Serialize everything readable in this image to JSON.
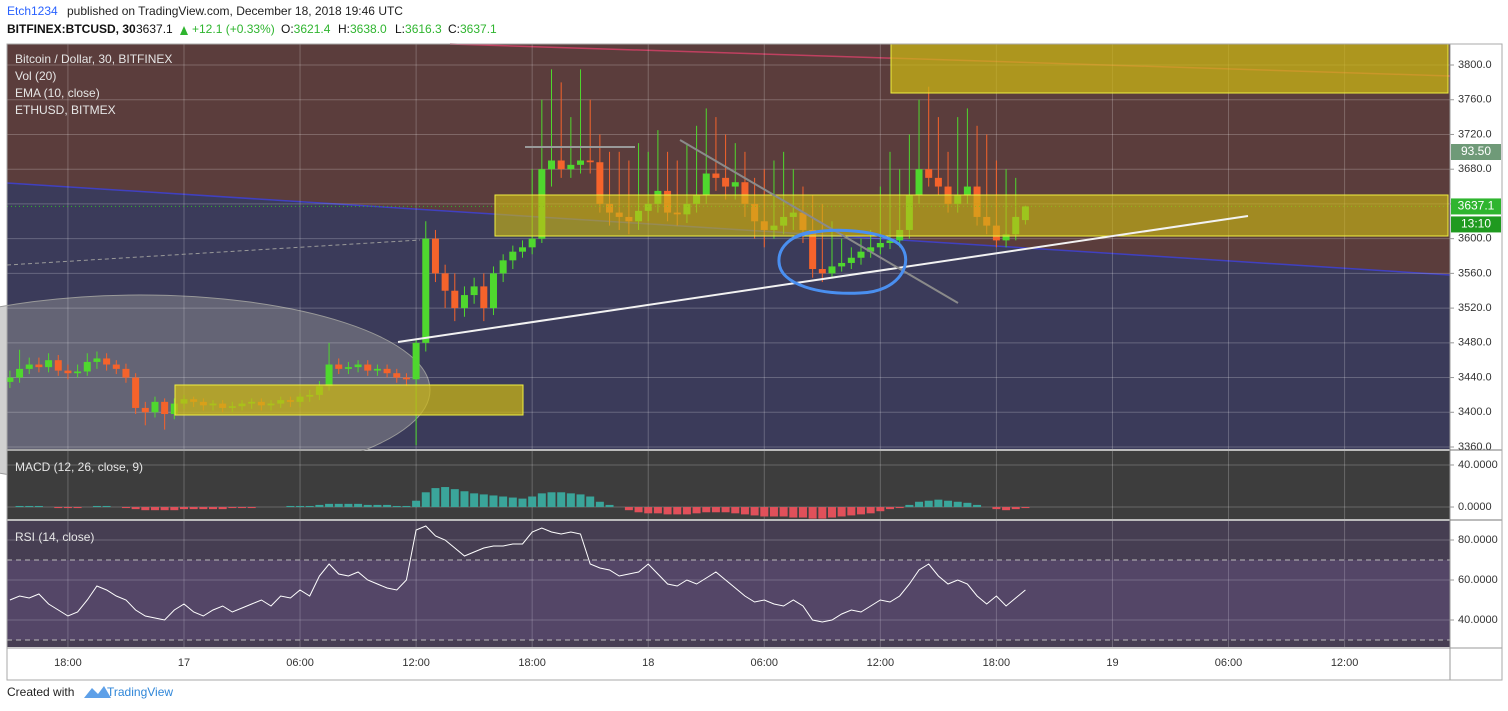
{
  "header": {
    "author": "Etch1234",
    "byline": "published on TradingView.com, December 18, 2018 19:46 UTC",
    "symbol": "BITFINEX:BTCUSD, 30",
    "last": "3637.1",
    "change": "+12.1 (+0.33%)",
    "ohlc": [
      {
        "key": "O:",
        "value": "3621.4"
      },
      {
        "key": "H:",
        "value": "3638.0"
      },
      {
        "key": "L:",
        "value": "3616.3"
      },
      {
        "key": "C:",
        "value": "3637.1"
      }
    ]
  },
  "chart_data": [
    {
      "type": "candlestick",
      "title": "Bitcoin / Dollar, 30, BITFINEX",
      "indicators": [
        "Vol (20)",
        "EMA (10, close)",
        "ETHUSD, BITMEX"
      ],
      "up_color": "#4fd82e",
      "down_color": "#f5632b",
      "grid": true,
      "xlim": [
        -0.3,
        148.9
      ],
      "ylim": [
        3357.7,
        3824.2
      ],
      "yticks": [
        {
          "value": 3360,
          "label": "3360.0"
        },
        {
          "value": 3400,
          "label": "3400.0"
        },
        {
          "value": 3440,
          "label": "3440.0"
        },
        {
          "value": 3480,
          "label": "3480.0"
        },
        {
          "value": 3520,
          "label": "3520.0"
        },
        {
          "value": 3560,
          "label": "3560.0"
        },
        {
          "value": 3600,
          "label": "3600.0"
        },
        {
          "value": 3640,
          "label": "3640.0"
        },
        {
          "value": 3680,
          "label": "3680.0"
        },
        {
          "value": 3720,
          "label": "3720.0"
        },
        {
          "value": 3760,
          "label": "3760.0"
        },
        {
          "value": 3800,
          "label": "3800.0"
        }
      ],
      "markers": [
        {
          "label": "93.50",
          "color": "#6f9a78"
        },
        {
          "value": 3637.1,
          "label": "3637.1",
          "color": "#2fb52f"
        },
        {
          "label": "13:10",
          "color": "#1f9a1f"
        }
      ],
      "open": [
        3435,
        3440,
        3450,
        3455,
        3452,
        3460,
        3448,
        3445,
        3447,
        3458,
        3462,
        3455,
        3450,
        3440,
        3405,
        3400,
        3412,
        3398,
        3410,
        3415,
        3412,
        3408,
        3410,
        3405,
        3407,
        3410,
        3412,
        3408,
        3410,
        3414,
        3412,
        3418,
        3420,
        3430,
        3455,
        3450,
        3452,
        3455,
        3448,
        3450,
        3445,
        3440,
        3438,
        3480,
        3600,
        3560,
        3540,
        3520,
        3535,
        3545,
        3520,
        3560,
        3575,
        3585,
        3590,
        3600,
        3680,
        3690,
        3680,
        3685,
        3690,
        3688,
        3640,
        3630,
        3625,
        3620,
        3632,
        3640,
        3655,
        3630,
        3628,
        3640,
        3650,
        3675,
        3670,
        3660,
        3665,
        3640,
        3620,
        3610,
        3615,
        3625,
        3630,
        3610,
        3565,
        3560,
        3568,
        3572,
        3578,
        3585,
        3590,
        3595,
        3598,
        3610,
        3650,
        3680,
        3670,
        3660,
        3640,
        3650,
        3660,
        3625,
        3615,
        3598,
        3605,
        3621.4
      ],
      "high": [
        3448,
        3472,
        3463,
        3463,
        3468,
        3466,
        3455,
        3455,
        3468,
        3470,
        3468,
        3460,
        3456,
        3445,
        3412,
        3418,
        3416,
        3416,
        3420,
        3418,
        3416,
        3414,
        3414,
        3412,
        3414,
        3416,
        3416,
        3414,
        3418,
        3418,
        3422,
        3426,
        3436,
        3480,
        3462,
        3458,
        3460,
        3460,
        3455,
        3455,
        3450,
        3445,
        3485,
        3620,
        3610,
        3570,
        3560,
        3545,
        3555,
        3560,
        3568,
        3582,
        3592,
        3598,
        3680,
        3760,
        3795,
        3780,
        3740,
        3795,
        3760,
        3720,
        3700,
        3700,
        3690,
        3710,
        3700,
        3725,
        3700,
        3690,
        3710,
        3730,
        3750,
        3740,
        3720,
        3710,
        3700,
        3670,
        3680,
        3690,
        3700,
        3680,
        3660,
        3650,
        3640,
        3620,
        3600,
        3590,
        3600,
        3610,
        3660,
        3700,
        3680,
        3720,
        3760,
        3775,
        3740,
        3700,
        3740,
        3750,
        3730,
        3720,
        3690,
        3680,
        3670,
        3638
      ],
      "low": [
        3428,
        3434,
        3444,
        3446,
        3446,
        3442,
        3438,
        3440,
        3442,
        3450,
        3448,
        3444,
        3434,
        3398,
        3385,
        3394,
        3380,
        3392,
        3404,
        3406,
        3402,
        3402,
        3400,
        3400,
        3402,
        3404,
        3402,
        3402,
        3405,
        3406,
        3406,
        3412,
        3414,
        3425,
        3444,
        3444,
        3446,
        3442,
        3442,
        3440,
        3434,
        3430,
        3362,
        3470,
        3550,
        3520,
        3505,
        3510,
        3525,
        3505,
        3512,
        3550,
        3565,
        3578,
        3582,
        3595,
        3660,
        3670,
        3670,
        3675,
        3675,
        3630,
        3615,
        3610,
        3605,
        3610,
        3620,
        3630,
        3620,
        3615,
        3618,
        3630,
        3640,
        3655,
        3645,
        3645,
        3625,
        3600,
        3590,
        3600,
        3605,
        3610,
        3595,
        3555,
        3550,
        3555,
        3562,
        3565,
        3570,
        3578,
        3582,
        3588,
        3590,
        3600,
        3640,
        3660,
        3650,
        3630,
        3630,
        3640,
        3615,
        3605,
        3590,
        3590,
        3598,
        3616.3
      ],
      "close": [
        3440,
        3450,
        3455,
        3452,
        3460,
        3448,
        3445,
        3447,
        3458,
        3462,
        3455,
        3450,
        3440,
        3405,
        3400,
        3412,
        3398,
        3410,
        3415,
        3412,
        3408,
        3410,
        3405,
        3407,
        3410,
        3412,
        3408,
        3410,
        3414,
        3412,
        3418,
        3420,
        3430,
        3455,
        3450,
        3452,
        3455,
        3448,
        3450,
        3445,
        3440,
        3438,
        3480,
        3600,
        3560,
        3540,
        3520,
        3535,
        3545,
        3520,
        3560,
        3575,
        3585,
        3590,
        3600,
        3680,
        3690,
        3680,
        3685,
        3690,
        3688,
        3640,
        3630,
        3625,
        3620,
        3632,
        3640,
        3655,
        3630,
        3628,
        3640,
        3650,
        3675,
        3670,
        3660,
        3665,
        3640,
        3620,
        3610,
        3615,
        3625,
        3630,
        3610,
        3565,
        3560,
        3568,
        3572,
        3578,
        3585,
        3590,
        3595,
        3598,
        3610,
        3650,
        3680,
        3670,
        3660,
        3640,
        3650,
        3660,
        3625,
        3615,
        3598,
        3605,
        3625,
        3637.1
      ]
    },
    {
      "type": "bar",
      "title": "MACD (12, 26, close, 9)",
      "pos_color": "#3aa59a",
      "neg_color": "#e0505a",
      "xlim": [
        -0.3,
        148.9
      ],
      "ylim": [
        -11.4,
        53.3
      ],
      "yticks": [
        {
          "value": 0,
          "label": "0.0000"
        },
        {
          "value": 40,
          "label": "40.0000"
        }
      ],
      "values": [
        0,
        1,
        1,
        1,
        0,
        -1,
        -1,
        -1,
        0,
        1,
        1,
        0,
        -1,
        -2,
        -3,
        -3,
        -3,
        -3,
        -2,
        -2,
        -2,
        -2,
        -2,
        -1,
        -1,
        -1,
        0,
        0,
        0,
        1,
        1,
        1,
        2,
        3,
        3,
        3,
        3,
        2,
        2,
        2,
        1,
        1,
        6,
        14,
        18,
        19,
        17,
        15,
        13,
        12,
        11,
        10,
        9,
        8,
        10,
        13,
        14,
        14,
        13,
        12,
        10,
        5,
        2,
        0,
        -3,
        -5,
        -6,
        -6,
        -7,
        -7,
        -7,
        -6,
        -5,
        -5,
        -5,
        -6,
        -7,
        -8,
        -9,
        -9,
        -9,
        -10,
        -10,
        -11,
        -11,
        -10,
        -9,
        -8,
        -7,
        -6,
        -4,
        -2,
        -1,
        2,
        5,
        6,
        7,
        6,
        5,
        4,
        2,
        0,
        -2,
        -3,
        -2,
        -1
      ]
    },
    {
      "type": "line",
      "title": "RSI (14, close)",
      "color": "#ffffff",
      "xlim": [
        -0.3,
        148.9
      ],
      "ylim": [
        26.5,
        89.5
      ],
      "levels": [
        70,
        30
      ],
      "yticks": [
        {
          "value": 40,
          "label": "40.0000"
        },
        {
          "value": 60,
          "label": "60.0000"
        },
        {
          "value": 80,
          "label": "80.0000"
        }
      ],
      "xticks": [
        {
          "value": 6,
          "label": "18:00"
        },
        {
          "value": 18,
          "label": "17"
        },
        {
          "value": 30,
          "label": "06:00"
        },
        {
          "value": 42,
          "label": "12:00"
        },
        {
          "value": 54,
          "label": "18:00"
        },
        {
          "value": 66,
          "label": "18"
        },
        {
          "value": 78,
          "label": "06:00"
        },
        {
          "value": 90,
          "label": "12:00"
        },
        {
          "value": 102,
          "label": "18:00"
        },
        {
          "value": 114,
          "label": "19"
        },
        {
          "value": 126,
          "label": "06:00"
        },
        {
          "value": 138,
          "label": "12:00"
        }
      ],
      "values": [
        50,
        52,
        51,
        53,
        48,
        45,
        42,
        44,
        50,
        57,
        55,
        52,
        50,
        45,
        42,
        41,
        40,
        45,
        48,
        44,
        42,
        45,
        47,
        44,
        46,
        48,
        50,
        47,
        52,
        51,
        55,
        52,
        62,
        68,
        63,
        62,
        64,
        60,
        58,
        56,
        55,
        60,
        85,
        87,
        82,
        80,
        76,
        72,
        74,
        76,
        77,
        77,
        78,
        78,
        84,
        86,
        84,
        83,
        84,
        83,
        68,
        66,
        65,
        62,
        63,
        64,
        68,
        63,
        58,
        57,
        60,
        58,
        61,
        64,
        60,
        56,
        52,
        49,
        50,
        48,
        47,
        50,
        47,
        40,
        39,
        40,
        43,
        45,
        44,
        47,
        50,
        49,
        52,
        58,
        65,
        68,
        62,
        58,
        60,
        58,
        52,
        48,
        52,
        47,
        51,
        55
      ]
    }
  ],
  "footer": {
    "created": "Created with",
    "brand": "TradingView"
  }
}
